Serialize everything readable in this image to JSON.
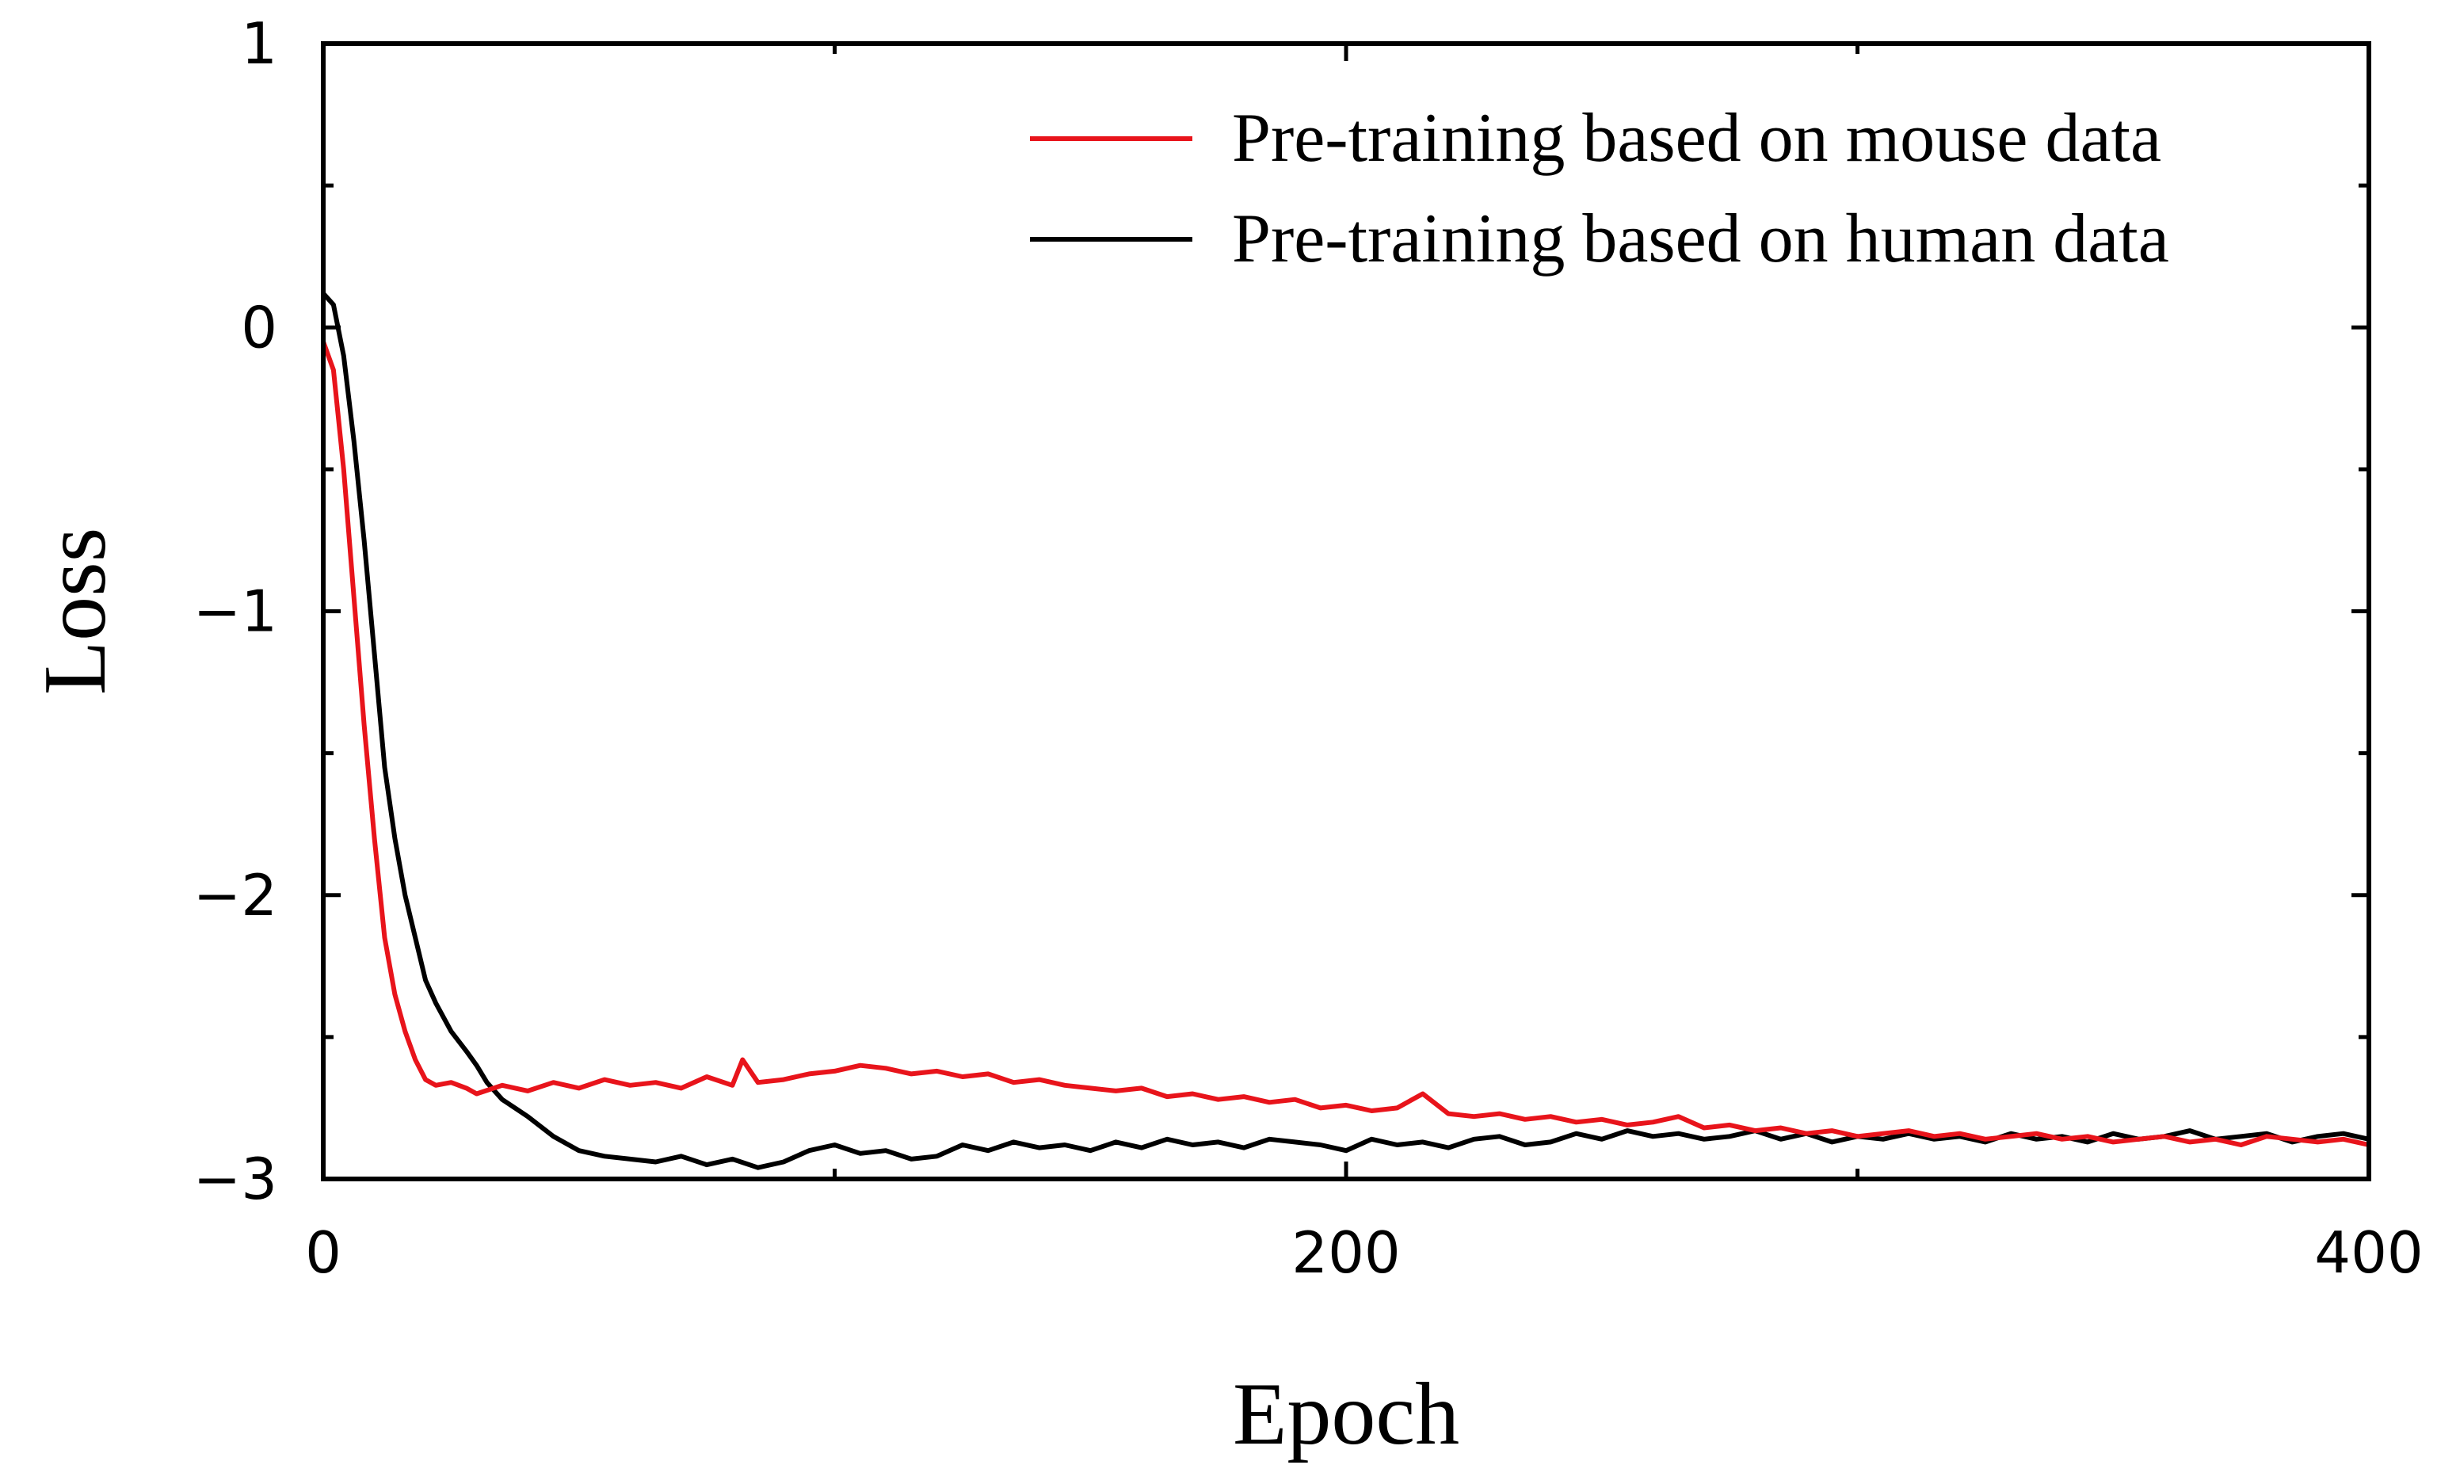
{
  "chart_data": {
    "type": "line",
    "title": "",
    "xlabel": "Epoch",
    "ylabel": "Loss",
    "xlim": [
      0,
      400
    ],
    "ylim": [
      -3,
      1
    ],
    "xticks": [
      0,
      200,
      400
    ],
    "xtick_labels": [
      "0",
      "200",
      "400"
    ],
    "yticks": [
      1,
      0,
      -1,
      -2,
      -3
    ],
    "ytick_labels": [
      "1",
      "0",
      "−1",
      "−2",
      "−3"
    ],
    "grid": false,
    "legend_position": "top-right",
    "series": [
      {
        "name": "Pre-training based on mouse data",
        "color": "#e8141b",
        "x": [
          0,
          2,
          4,
          6,
          8,
          10,
          12,
          14,
          16,
          18,
          20,
          22,
          25,
          28,
          30,
          35,
          40,
          45,
          50,
          55,
          60,
          65,
          70,
          75,
          80,
          82,
          85,
          90,
          95,
          100,
          105,
          110,
          115,
          120,
          125,
          130,
          135,
          140,
          145,
          150,
          155,
          160,
          165,
          170,
          175,
          180,
          185,
          190,
          195,
          200,
          205,
          210,
          215,
          220,
          225,
          230,
          235,
          240,
          245,
          250,
          255,
          260,
          265,
          270,
          275,
          280,
          285,
          290,
          295,
          300,
          305,
          310,
          315,
          320,
          325,
          330,
          335,
          340,
          345,
          350,
          355,
          360,
          365,
          370,
          375,
          380,
          385,
          390,
          395,
          400
        ],
        "y": [
          -0.05,
          -0.15,
          -0.5,
          -0.95,
          -1.4,
          -1.8,
          -2.15,
          -2.35,
          -2.48,
          -2.58,
          -2.65,
          -2.67,
          -2.66,
          -2.68,
          -2.7,
          -2.67,
          -2.69,
          -2.66,
          -2.68,
          -2.65,
          -2.67,
          -2.66,
          -2.68,
          -2.64,
          -2.67,
          -2.58,
          -2.66,
          -2.65,
          -2.63,
          -2.62,
          -2.6,
          -2.61,
          -2.63,
          -2.62,
          -2.64,
          -2.63,
          -2.66,
          -2.65,
          -2.67,
          -2.68,
          -2.69,
          -2.68,
          -2.71,
          -2.7,
          -2.72,
          -2.71,
          -2.73,
          -2.72,
          -2.75,
          -2.74,
          -2.76,
          -2.75,
          -2.7,
          -2.77,
          -2.78,
          -2.77,
          -2.79,
          -2.78,
          -2.8,
          -2.79,
          -2.81,
          -2.8,
          -2.78,
          -2.82,
          -2.81,
          -2.83,
          -2.82,
          -2.84,
          -2.83,
          -2.85,
          -2.84,
          -2.83,
          -2.85,
          -2.84,
          -2.86,
          -2.85,
          -2.84,
          -2.86,
          -2.85,
          -2.87,
          -2.86,
          -2.85,
          -2.87,
          -2.86,
          -2.88,
          -2.85,
          -2.86,
          -2.87,
          -2.86,
          -2.88
        ]
      },
      {
        "name": "Pre-training based on human data",
        "color": "#000000",
        "x": [
          0,
          2,
          4,
          6,
          8,
          10,
          12,
          14,
          16,
          18,
          20,
          22,
          25,
          28,
          30,
          32,
          35,
          40,
          45,
          50,
          55,
          60,
          65,
          70,
          75,
          80,
          85,
          90,
          95,
          100,
          105,
          110,
          115,
          120,
          125,
          130,
          135,
          140,
          145,
          150,
          155,
          160,
          165,
          170,
          175,
          180,
          185,
          190,
          195,
          200,
          205,
          210,
          215,
          220,
          225,
          230,
          235,
          240,
          245,
          250,
          255,
          260,
          265,
          270,
          275,
          280,
          285,
          290,
          295,
          300,
          305,
          310,
          315,
          320,
          325,
          330,
          335,
          340,
          345,
          350,
          355,
          360,
          365,
          370,
          375,
          380,
          385,
          390,
          395,
          400
        ],
        "y": [
          0.12,
          0.08,
          -0.1,
          -0.4,
          -0.75,
          -1.15,
          -1.55,
          -1.8,
          -2.0,
          -2.15,
          -2.3,
          -2.38,
          -2.48,
          -2.55,
          -2.6,
          -2.66,
          -2.72,
          -2.78,
          -2.85,
          -2.9,
          -2.92,
          -2.93,
          -2.94,
          -2.92,
          -2.95,
          -2.93,
          -2.96,
          -2.94,
          -2.9,
          -2.88,
          -2.91,
          -2.9,
          -2.93,
          -2.92,
          -2.88,
          -2.9,
          -2.87,
          -2.89,
          -2.88,
          -2.9,
          -2.87,
          -2.89,
          -2.86,
          -2.88,
          -2.87,
          -2.89,
          -2.86,
          -2.87,
          -2.88,
          -2.9,
          -2.86,
          -2.88,
          -2.87,
          -2.89,
          -2.86,
          -2.85,
          -2.88,
          -2.87,
          -2.84,
          -2.86,
          -2.83,
          -2.85,
          -2.84,
          -2.86,
          -2.85,
          -2.83,
          -2.86,
          -2.84,
          -2.87,
          -2.85,
          -2.86,
          -2.84,
          -2.86,
          -2.85,
          -2.87,
          -2.84,
          -2.86,
          -2.85,
          -2.87,
          -2.84,
          -2.86,
          -2.85,
          -2.83,
          -2.86,
          -2.85,
          -2.84,
          -2.87,
          -2.85,
          -2.84,
          -2.86
        ]
      }
    ]
  }
}
